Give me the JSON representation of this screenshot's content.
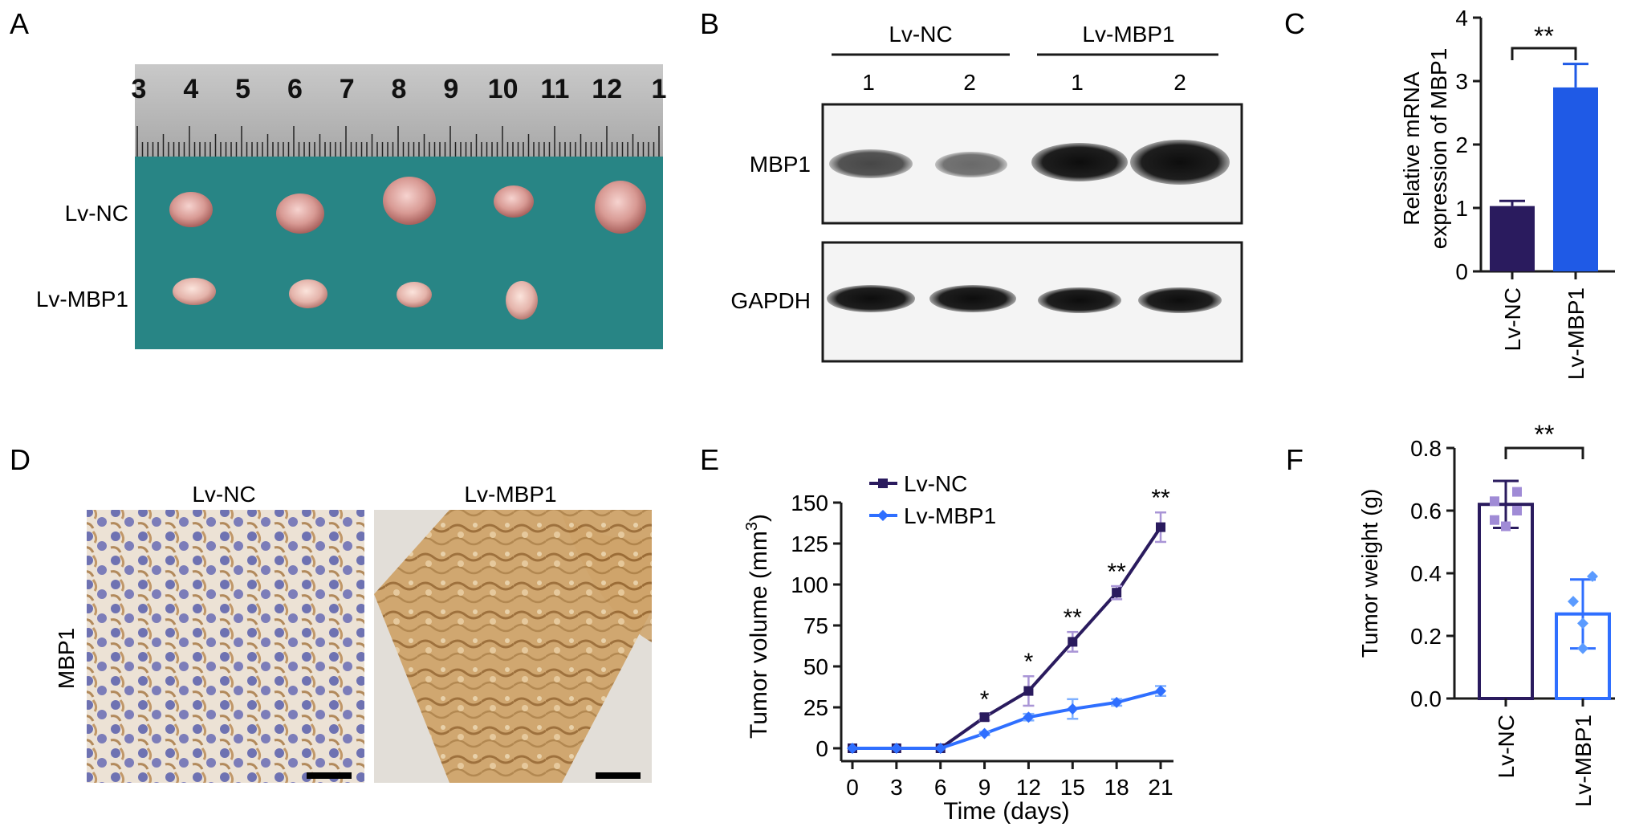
{
  "panel_letters": {
    "a": "A",
    "b": "B",
    "c": "C",
    "d": "D",
    "e": "E",
    "f": "F"
  },
  "colors": {
    "nc": "#2a1b5e",
    "mbp1": "#1f5ae6",
    "mbp1_light": "#2f6fff",
    "nc_point": "#a08bd6",
    "mbp1_point": "#5b9bff"
  },
  "panel_a": {
    "ruler_numbers": [
      "3",
      "4",
      "5",
      "6",
      "7",
      "8",
      "9",
      "10",
      "11",
      "12",
      "1"
    ],
    "row_labels": [
      "Lv-NC",
      "Lv-MBP1"
    ],
    "tumors_per_row": [
      5,
      4
    ]
  },
  "panel_b": {
    "group_labels": [
      "Lv-NC",
      "Lv-MBP1"
    ],
    "lane_labels": [
      "1",
      "2",
      "1",
      "2"
    ],
    "blot_labels": [
      "MBP1",
      "GAPDH"
    ]
  },
  "panel_d": {
    "column_labels": [
      "Lv-NC",
      "Lv-MBP1"
    ],
    "row_label": "MBP1"
  },
  "chart_data": [
    {
      "id": "C",
      "type": "bar",
      "categories": [
        "Lv-NC",
        "Lv-MBP1"
      ],
      "values": [
        1.03,
        2.9
      ],
      "errors": [
        0.08,
        0.37
      ],
      "ylabel": "Relative mRNA expression of MBP1",
      "ylim": [
        0,
        4
      ],
      "yticks": [
        0,
        1,
        2,
        3,
        4
      ],
      "significance": "**",
      "filled": true
    },
    {
      "id": "E",
      "type": "line",
      "x": [
        0,
        3,
        6,
        9,
        12,
        15,
        18,
        21
      ],
      "series": [
        {
          "name": "Lv-NC",
          "values": [
            0,
            0,
            0,
            19,
            35,
            65,
            95,
            135
          ],
          "errors": [
            0,
            0,
            0,
            2,
            9,
            6,
            4,
            9
          ]
        },
        {
          "name": "Lv-MBP1",
          "values": [
            0,
            0,
            0,
            9,
            19,
            24,
            28,
            35
          ],
          "errors": [
            0,
            0,
            0,
            1,
            2,
            6,
            2,
            3
          ]
        }
      ],
      "significance": [
        "",
        "",
        "",
        "*",
        "*",
        "**",
        "**",
        "**"
      ],
      "xlabel": "Time (days)",
      "ylabel_main": "Tumor volume (mm",
      "ylabel_sup": "3",
      "ylabel_end": ")",
      "xlim": [
        0,
        21
      ],
      "ylim": [
        0,
        150
      ],
      "xticks": [
        0,
        3,
        6,
        9,
        12,
        15,
        18,
        21
      ],
      "yticks": [
        0,
        25,
        50,
        75,
        100,
        125,
        150
      ],
      "legend_placement": "top-left"
    },
    {
      "id": "F",
      "type": "bar",
      "categories": [
        "Lv-NC",
        "Lv-MBP1"
      ],
      "values": [
        0.62,
        0.27
      ],
      "errors": [
        0.075,
        0.11
      ],
      "points": [
        [
          0.57,
          0.6,
          0.63,
          0.66,
          0.55
        ],
        [
          0.16,
          0.24,
          0.31,
          0.39
        ]
      ],
      "ylabel": "Tumor weight (g)",
      "ylim": [
        0,
        0.8
      ],
      "yticks": [
        "0.0",
        "0.2",
        "0.4",
        "0.6",
        "0.8"
      ],
      "significance": "**",
      "filled": false
    }
  ]
}
